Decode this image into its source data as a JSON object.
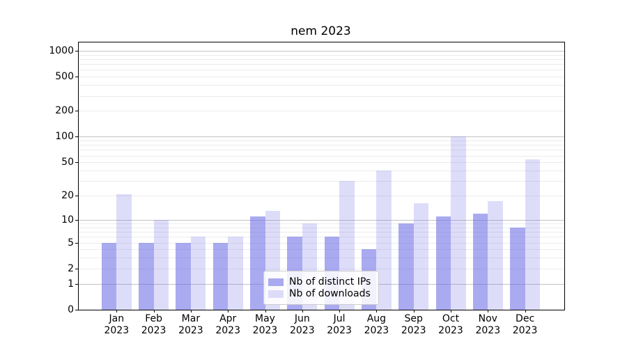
{
  "title": "nem 2023",
  "colors": {
    "bar_dark": "rgba(100,100,230,0.55)",
    "bar_light": "rgba(100,100,230,0.22)",
    "bar_dark_solid": "#aaaaf0",
    "bar_light_solid": "#dcdcf9",
    "grid_major": "#c3c3c3",
    "grid_minor": "#ececec"
  },
  "legend": {
    "items": [
      {
        "label": "Nb of distinct IPs"
      },
      {
        "label": "Nb of downloads"
      }
    ]
  },
  "chart_data": {
    "type": "bar",
    "title": "nem 2023",
    "categories": [
      "Jan 2023",
      "Feb 2023",
      "Mar 2023",
      "Apr 2023",
      "May 2023",
      "Jun 2023",
      "Jul 2023",
      "Aug 2023",
      "Sep 2023",
      "Oct 2023",
      "Nov 2023",
      "Dec 2023"
    ],
    "month_labels": [
      "Jan",
      "Feb",
      "Mar",
      "Apr",
      "May",
      "Jun",
      "Jul",
      "Aug",
      "Sep",
      "Oct",
      "Nov",
      "Dec"
    ],
    "year_label": "2023",
    "series": [
      {
        "name": "Nb of distinct IPs",
        "values": [
          5,
          5,
          5,
          5,
          11,
          6,
          6,
          4,
          9,
          11,
          12,
          8
        ]
      },
      {
        "name": "Nb of downloads",
        "values": [
          21,
          10,
          6,
          6,
          13,
          9,
          30,
          40,
          16,
          100,
          17,
          54
        ]
      }
    ],
    "xlabel": "",
    "ylabel": "",
    "yscale": "log1p",
    "yticks": [
      0,
      1,
      2,
      5,
      10,
      20,
      50,
      100,
      200,
      500,
      1000
    ],
    "ytick_labels": [
      "0",
      "1",
      "2",
      "5",
      "10",
      "20",
      "50",
      "100",
      "200",
      "500",
      "1000"
    ],
    "major_gridlines": [
      1,
      10,
      100,
      1000
    ],
    "minor_gridlines": [
      2,
      3,
      4,
      5,
      6,
      7,
      8,
      9,
      20,
      30,
      40,
      50,
      60,
      70,
      80,
      90,
      200,
      300,
      400,
      500,
      600,
      700,
      800,
      900
    ],
    "ylim": [
      0,
      1250
    ],
    "grid": true,
    "legend_position": "lower center"
  }
}
